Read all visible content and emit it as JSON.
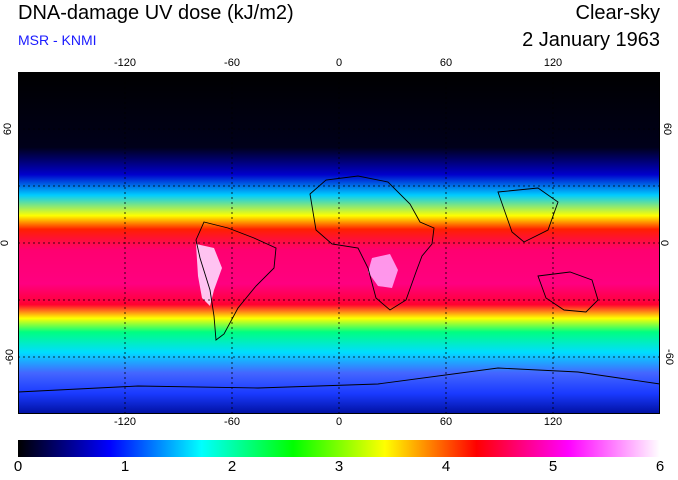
{
  "header": {
    "title": "DNA-damage UV dose (kJ/m2)",
    "credit": "MSR - KNMI",
    "mode": "Clear-sky",
    "date": "2 January 1963"
  },
  "map": {
    "lon_ticks": [
      "-120",
      "-60",
      "0",
      "60",
      "120"
    ],
    "lat_ticks_left": [
      "60",
      "0",
      "-60"
    ],
    "lat_ticks_right": [
      "60",
      "0",
      "-60"
    ],
    "lon_range": [
      -180,
      180
    ],
    "lat_range": [
      -90,
      90
    ],
    "lon_values": [
      -120,
      -60,
      0,
      60,
      120
    ],
    "lat_values": [
      60,
      0,
      -60
    ]
  },
  "colorbar": {
    "labels": [
      "0",
      "1",
      "2",
      "3",
      "4",
      "5",
      "6"
    ],
    "min": 0,
    "max": 6,
    "colors": [
      "#000000",
      "#0000ff",
      "#00ffff",
      "#00ff00",
      "#ffff00",
      "#ff0000",
      "#ff00ff",
      "#ffffff"
    ]
  }
}
